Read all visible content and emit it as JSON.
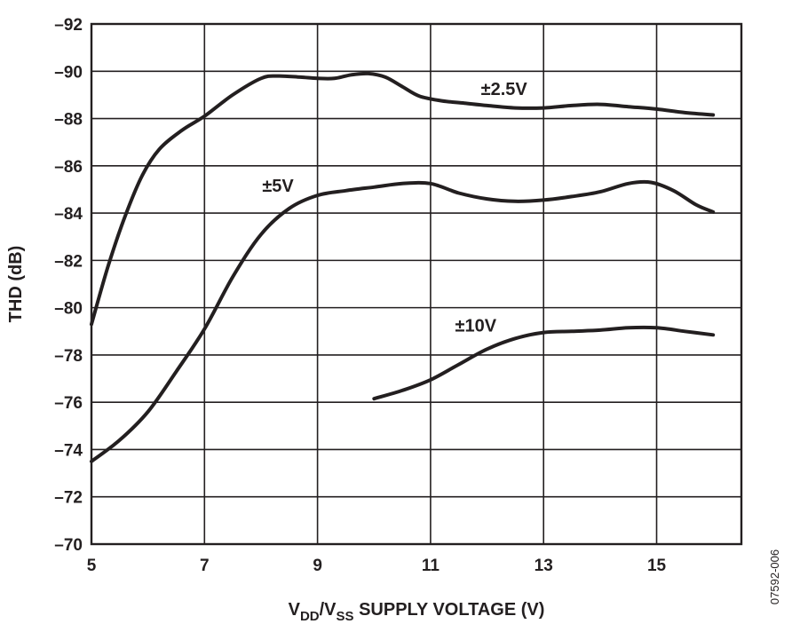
{
  "chart_data": {
    "type": "line",
    "title": "",
    "xlabel": {
      "main1": "V",
      "sub1": "DD",
      "main2": "/V",
      "sub2": "SS",
      "main3": " SUPPLY VOLTAGE (V)"
    },
    "ylabel": "THD (dB)",
    "xlim": [
      5,
      16.5
    ],
    "ylim": [
      -70,
      -92
    ],
    "x_ticks": [
      5,
      7,
      9,
      11,
      13,
      15
    ],
    "x_tick_labels": [
      "5",
      "7",
      "9",
      "11",
      "13",
      "15"
    ],
    "y_ticks": [
      -92,
      -90,
      -88,
      -86,
      -84,
      -82,
      -80,
      -78,
      -76,
      -74,
      -72,
      -70
    ],
    "y_tick_labels": [
      "–92",
      "–90",
      "–88",
      "–86",
      "–84",
      "–82",
      "–80",
      "–78",
      "–76",
      "–74",
      "–72",
      "–70"
    ],
    "grid": true,
    "series": [
      {
        "name": "±2.5V",
        "x": [
          5.0,
          5.3,
          5.6,
          5.9,
          6.2,
          6.6,
          7.0,
          7.5,
          8.0,
          8.3,
          8.7,
          9.0,
          9.3,
          9.6,
          9.9,
          10.2,
          10.5,
          10.8,
          11.2,
          11.6,
          12.0,
          12.5,
          13.0,
          13.5,
          14.0,
          14.5,
          15.0,
          15.5,
          16.0
        ],
        "y": [
          -79.3,
          -81.8,
          -83.9,
          -85.6,
          -86.7,
          -87.5,
          -88.1,
          -89.0,
          -89.7,
          -89.8,
          -89.75,
          -89.7,
          -89.7,
          -89.85,
          -89.9,
          -89.75,
          -89.35,
          -88.95,
          -88.75,
          -88.65,
          -88.55,
          -88.45,
          -88.45,
          -88.55,
          -88.6,
          -88.5,
          -88.4,
          -88.25,
          -88.15
        ]
      },
      {
        "name": "±5V",
        "x": [
          5.0,
          5.5,
          6.0,
          6.5,
          7.0,
          7.5,
          8.0,
          8.5,
          9.0,
          9.5,
          10.0,
          10.5,
          11.0,
          11.5,
          12.0,
          12.5,
          13.0,
          13.5,
          14.0,
          14.5,
          14.9,
          15.3,
          15.7,
          16.0
        ],
        "y": [
          -73.5,
          -74.4,
          -75.6,
          -77.3,
          -79.1,
          -81.3,
          -83.1,
          -84.2,
          -84.75,
          -84.95,
          -85.1,
          -85.25,
          -85.25,
          -84.85,
          -84.6,
          -84.5,
          -84.55,
          -84.7,
          -84.9,
          -85.25,
          -85.3,
          -84.95,
          -84.35,
          -84.05
        ]
      },
      {
        "name": "±10V",
        "x": [
          10.0,
          10.5,
          11.0,
          11.5,
          12.0,
          12.5,
          13.0,
          13.5,
          14.0,
          14.5,
          15.0,
          15.5,
          16.0
        ],
        "y": [
          -76.15,
          -76.5,
          -76.95,
          -77.6,
          -78.25,
          -78.7,
          -78.95,
          -79.0,
          -79.05,
          -79.15,
          -79.15,
          -79.0,
          -78.85
        ]
      }
    ],
    "annotations": [
      {
        "text": "±2.5V",
        "x": 12.3,
        "y": -89.0
      },
      {
        "text": "±5V",
        "x": 8.3,
        "y": -84.9
      },
      {
        "text": "±10V",
        "x": 11.8,
        "y": -79.0
      }
    ]
  },
  "figure_id": "07592-006"
}
